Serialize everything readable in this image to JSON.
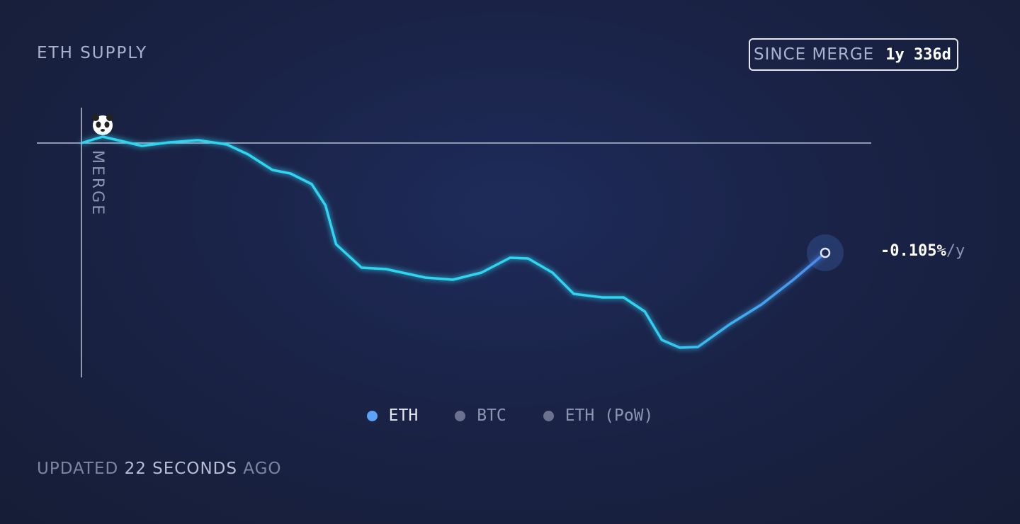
{
  "chart_data": {
    "type": "line",
    "title": "ETH SUPPLY",
    "time_frame": {
      "label": "SINCE MERGE",
      "value": "1y 336d"
    },
    "merge_label": "MERGE",
    "x": [
      0,
      20,
      40,
      57,
      83,
      110,
      137,
      157,
      180,
      197,
      217,
      230,
      240,
      264,
      287,
      324,
      350,
      377,
      404,
      421,
      444,
      464,
      491,
      511,
      531,
      547,
      564,
      581,
      611,
      641,
      671,
      701
    ],
    "series": [
      {
        "name": "ETH",
        "color": "#2fd4f0",
        "end_color": "#4d8cf0",
        "values": [
          0,
          0.09,
          0.02,
          -0.04,
          0.01,
          0.04,
          -0.02,
          -0.16,
          -0.38,
          -0.43,
          -0.58,
          -0.88,
          -1.43,
          -1.76,
          -1.78,
          -1.9,
          -1.93,
          -1.83,
          -1.62,
          -1.63,
          -1.83,
          -2.13,
          -2.18,
          -2.18,
          -2.38,
          -2.78,
          -2.89,
          -2.88,
          -2.56,
          -2.28,
          -1.93,
          -1.55
        ]
      }
    ],
    "rate": {
      "value": "-0.105%",
      "unit": "/y"
    },
    "legend": [
      {
        "name": "ETH",
        "color": "#5ea2f5"
      },
      {
        "name": "BTC",
        "color": "#6b7290"
      },
      {
        "name": "ETH (PoW)",
        "color": "#6b7290"
      }
    ],
    "updated": {
      "prefix": "UPDATED",
      "amount": "22 SECONDS",
      "suffix": "AGO"
    }
  }
}
